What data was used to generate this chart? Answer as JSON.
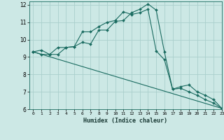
{
  "xlabel": "Humidex (Indice chaleur)",
  "background_color": "#cce8e5",
  "grid_color": "#aacfcc",
  "line_color": "#1a6b60",
  "xlim": [
    -0.5,
    23
  ],
  "ylim": [
    6,
    12.2
  ],
  "yticks": [
    6,
    7,
    8,
    9,
    10,
    11,
    12
  ],
  "xticks": [
    0,
    1,
    2,
    3,
    4,
    5,
    6,
    7,
    8,
    9,
    10,
    11,
    12,
    13,
    14,
    15,
    16,
    17,
    18,
    19,
    20,
    21,
    22,
    23
  ],
  "line1_x": [
    0,
    1,
    2,
    3,
    4,
    5,
    6,
    7,
    8,
    9,
    10,
    11,
    12,
    13,
    14,
    15,
    16,
    17,
    18,
    19,
    20,
    21,
    22,
    23
  ],
  "line1_y": [
    9.3,
    9.4,
    9.15,
    9.55,
    9.55,
    9.6,
    10.45,
    10.45,
    10.75,
    11.0,
    11.1,
    11.6,
    11.45,
    11.55,
    11.75,
    9.35,
    8.85,
    7.15,
    7.2,
    7.0,
    6.8,
    6.55,
    6.35,
    6.05
  ],
  "line2_x": [
    0,
    1,
    2,
    3,
    4,
    5,
    6,
    7,
    8,
    9,
    10,
    11,
    12,
    13,
    14,
    15,
    16,
    17,
    18,
    19,
    20,
    21,
    22,
    23
  ],
  "line2_y": [
    9.3,
    9.15,
    9.15,
    9.15,
    9.55,
    9.6,
    9.85,
    9.75,
    10.55,
    10.55,
    11.05,
    11.1,
    11.55,
    11.75,
    12.05,
    11.7,
    9.3,
    7.15,
    7.3,
    7.4,
    7.0,
    6.8,
    6.55,
    6.05
  ],
  "line3_x": [
    0,
    23
  ],
  "line3_y": [
    9.3,
    6.05
  ]
}
